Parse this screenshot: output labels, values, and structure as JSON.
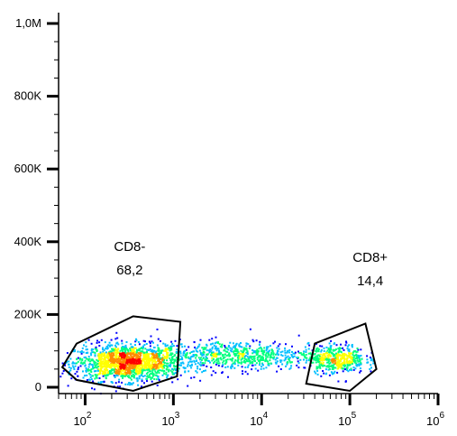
{
  "chart_data": {
    "type": "scatter",
    "title": "",
    "xlabel": "",
    "ylabel": "",
    "x_scale": "log",
    "xlim": [
      50,
      1000000
    ],
    "ylim": [
      0,
      1050000
    ],
    "y_ticks": [
      {
        "value": 0,
        "label": "0"
      },
      {
        "value": 200000,
        "label": "200K"
      },
      {
        "value": 400000,
        "label": "400K"
      },
      {
        "value": 600000,
        "label": "600K"
      },
      {
        "value": 800000,
        "label": "800K"
      },
      {
        "value": 1000000,
        "label": "1,0M"
      }
    ],
    "x_ticks": [
      {
        "value": 100,
        "base": "10",
        "exp": "2"
      },
      {
        "value": 1000,
        "base": "10",
        "exp": "3"
      },
      {
        "value": 10000,
        "base": "10",
        "exp": "4"
      },
      {
        "value": 100000,
        "base": "10",
        "exp": "5"
      },
      {
        "value": 1000000,
        "base": "10",
        "exp": "6"
      }
    ],
    "density_colors": [
      "#0000ff",
      "#00bfff",
      "#00ff7f",
      "#ffff00",
      "#ff8c00",
      "#ff0000"
    ],
    "clusters": [
      {
        "x_center": 300,
        "x_spread_decades": 0.3,
        "y_center": 70000,
        "y_spread": 25000,
        "count": 1600
      },
      {
        "x_center": 5000,
        "x_spread_decades": 0.45,
        "y_center": 90000,
        "y_spread": 20000,
        "count": 700
      },
      {
        "x_center": 70000,
        "x_spread_decades": 0.16,
        "y_center": 80000,
        "y_spread": 20000,
        "count": 450
      }
    ],
    "gates": [
      {
        "name": "CD8-",
        "value": "68,2",
        "vertices": [
          [
            55,
            55000
          ],
          [
            80,
            120000
          ],
          [
            350,
            195000
          ],
          [
            1200,
            180000
          ],
          [
            1100,
            30000
          ],
          [
            350,
            -10000
          ],
          [
            80,
            20000
          ]
        ],
        "label_anchor": [
          320,
          350000
        ]
      },
      {
        "name": "CD8+",
        "value": "14,4",
        "vertices": [
          [
            40000,
            120000
          ],
          [
            150000,
            175000
          ],
          [
            200000,
            50000
          ],
          [
            100000,
            -10000
          ],
          [
            32000,
            10000
          ]
        ],
        "label_anchor": [
          170000,
          320000
        ]
      }
    ]
  }
}
